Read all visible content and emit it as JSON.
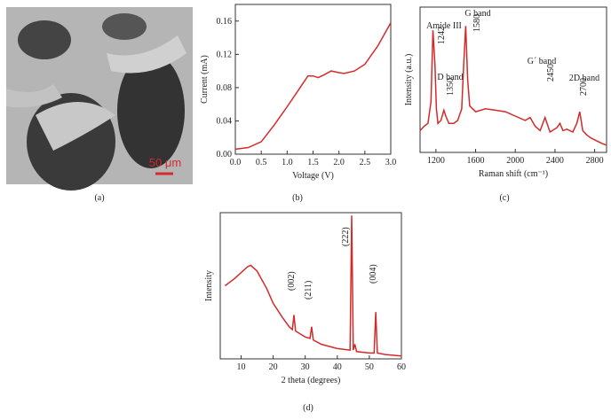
{
  "panel_a": {
    "scale_bar_label": "50 μm",
    "caption": "(a)"
  },
  "chart_data": [
    {
      "type": "line",
      "caption": "(b)",
      "xlabel": "Voltage (V)",
      "ylabel": "Current (mA)",
      "color": "#d42a2a",
      "x": [
        0,
        0.25,
        0.5,
        0.75,
        1.0,
        1.25,
        1.4,
        1.5,
        1.6,
        1.7,
        1.85,
        2.0,
        2.1,
        2.3,
        2.5,
        2.75,
        3.0
      ],
      "values": [
        0.006,
        0.008,
        0.015,
        0.035,
        0.057,
        0.08,
        0.094,
        0.094,
        0.092,
        0.095,
        0.1,
        0.098,
        0.097,
        0.1,
        0.108,
        0.13,
        0.158
      ],
      "xlim": [
        0,
        3
      ],
      "ylim": [
        0,
        0.18
      ],
      "xticks": [
        {
          "value": 0,
          "label": "0.0"
        },
        {
          "value": 0.5,
          "label": "0.5"
        },
        {
          "value": 1,
          "label": "1.0"
        },
        {
          "value": 1.5,
          "label": "1.5"
        },
        {
          "value": 2,
          "label": "2.0"
        },
        {
          "value": 2.5,
          "label": "2.5"
        },
        {
          "value": 3,
          "label": "3.0"
        }
      ],
      "yticks": [
        {
          "value": 0,
          "label": "0.00"
        },
        {
          "value": 0.04,
          "label": "0.04"
        },
        {
          "value": 0.08,
          "label": "0.08"
        },
        {
          "value": 0.12,
          "label": "0.12"
        },
        {
          "value": 0.16,
          "label": "0.16"
        }
      ]
    },
    {
      "type": "line",
      "caption": "(c)",
      "xlabel": "Raman shift (cm⁻¹)",
      "ylabel": "Intensity (a.u.)",
      "color": "#d42a2a",
      "x": [
        1040,
        1080,
        1120,
        1150,
        1170,
        1190,
        1205,
        1220,
        1250,
        1280,
        1300,
        1330,
        1380,
        1420,
        1460,
        1480,
        1500,
        1520,
        1540,
        1570,
        1600,
        1700,
        1800,
        1900,
        2000,
        2100,
        2150,
        2200,
        2250,
        2300,
        2350,
        2420,
        2450,
        2480,
        2520,
        2580,
        2620,
        2650,
        2680,
        2720,
        2760,
        2820,
        2880,
        2920
      ],
      "values": [
        0.15,
        0.18,
        0.2,
        0.35,
        0.84,
        0.6,
        0.3,
        0.2,
        0.22,
        0.29,
        0.25,
        0.2,
        0.2,
        0.22,
        0.3,
        0.6,
        0.87,
        0.5,
        0.32,
        0.3,
        0.28,
        0.3,
        0.29,
        0.28,
        0.25,
        0.22,
        0.24,
        0.18,
        0.15,
        0.24,
        0.14,
        0.17,
        0.2,
        0.15,
        0.16,
        0.14,
        0.2,
        0.28,
        0.15,
        0.12,
        0.1,
        0.08,
        0.06,
        0.05
      ],
      "xlim": [
        1040,
        2920
      ],
      "ylim": [
        0,
        1
      ],
      "xticks": [
        1200,
        1600,
        2000,
        2400,
        2800
      ],
      "annotations": [
        "Amide III",
        "1242",
        "G band",
        "1580",
        "D band",
        "1350",
        "G´ band",
        "2450",
        "2D band",
        "2700"
      ]
    },
    {
      "type": "line",
      "caption": "(d)",
      "xlabel": "2 theta (degrees)",
      "ylabel": "Intensity",
      "color": "#d42a2a",
      "x": [
        5,
        8,
        12,
        13,
        15,
        18,
        20,
        23,
        25,
        26,
        26.5,
        27,
        30,
        31.5,
        32,
        32.5,
        35,
        40,
        44,
        44.5,
        45,
        45.5,
        46,
        50,
        51.5,
        52,
        52.5,
        55,
        60
      ],
      "values": [
        0.5,
        0.55,
        0.63,
        0.64,
        0.6,
        0.48,
        0.38,
        0.28,
        0.22,
        0.2,
        0.3,
        0.19,
        0.15,
        0.14,
        0.22,
        0.13,
        0.1,
        0.07,
        0.06,
        0.98,
        0.06,
        0.1,
        0.05,
        0.04,
        0.04,
        0.32,
        0.04,
        0.03,
        0.02
      ],
      "xlim": [
        3.5,
        60
      ],
      "ylim": [
        0,
        1
      ],
      "xticks": [
        10,
        20,
        30,
        40,
        50,
        60
      ],
      "annotations": [
        "(002)",
        "(211)",
        "(222)",
        "(004)"
      ]
    }
  ]
}
